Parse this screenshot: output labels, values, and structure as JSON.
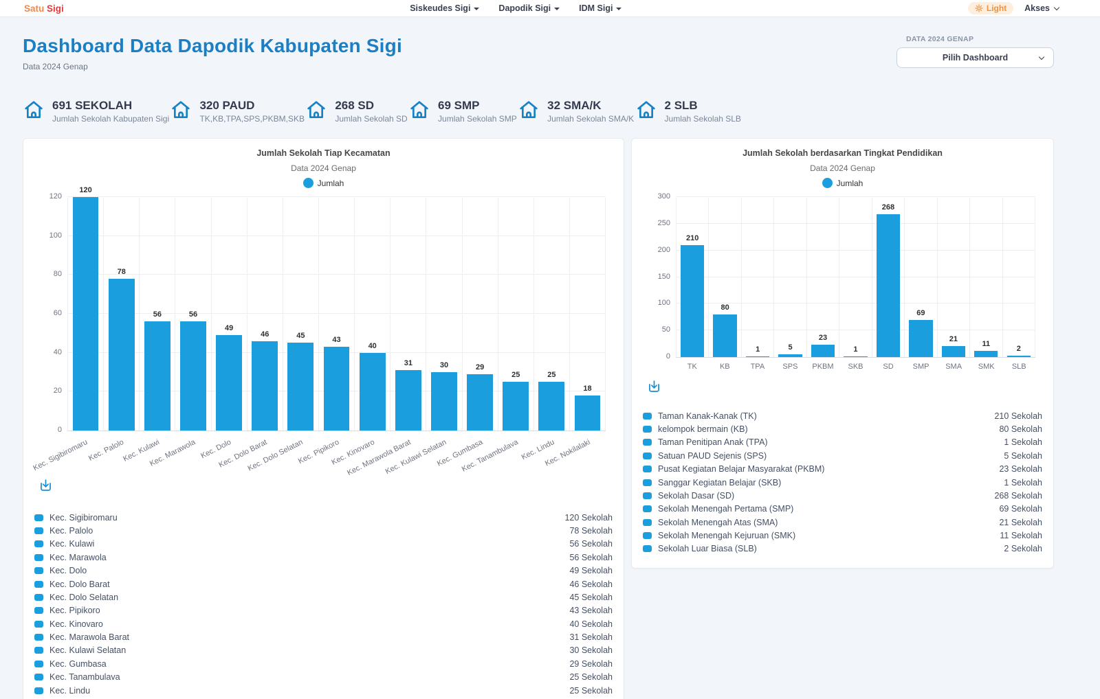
{
  "colors": {
    "accent": "#1a9edd",
    "heading": "#1a7fc4",
    "brand_satu": "#f08a4b",
    "brand_sigi": "#e23b3b",
    "light_badge_bg": "#fdeede",
    "light_badge_text": "#ef9143",
    "icon_blue": "#1781c6"
  },
  "icons": {
    "stat": "home-icon",
    "theme": "sun-icon",
    "chart_action": "download-icon",
    "dropdowns": "chevron-down-icon"
  },
  "navbar": {
    "brand_satu": "Satu",
    "brand_sigi": "Sigi",
    "menu": [
      {
        "label": "Siskeudes Sigi"
      },
      {
        "label": "Dapodik Sigi"
      },
      {
        "label": "IDM Sigi"
      }
    ],
    "theme_label": "Light",
    "akses_label": "Akses"
  },
  "header": {
    "title": "Dashboard Data Dapodik Kabupaten Sigi",
    "subtitle": "Data 2024 Genap",
    "select_label": "DATA 2024 GENAP",
    "select_value": "Pilih Dashboard"
  },
  "stats": [
    {
      "value": "691 SEKOLAH",
      "label": "Jumlah Sekolah Kabupaten Sigi"
    },
    {
      "value": "320 PAUD",
      "label": "TK,KB,TPA,SPS,PKBM,SKB"
    },
    {
      "value": "268 SD",
      "label": "Jumlah Sekolah SD"
    },
    {
      "value": "69 SMP",
      "label": "Jumlah Sekolah SMP"
    },
    {
      "value": "32 SMA/K",
      "label": "Jumlah Sekolah SMA/K"
    },
    {
      "value": "2 SLB",
      "label": "Jumlah Sekolah SLB"
    }
  ],
  "chart_data": [
    {
      "type": "bar",
      "title": "Jumlah Sekolah Tiap Kecamatan",
      "subtitle": "Data 2024 Genap",
      "legend": "Jumlah",
      "legend_position": "top",
      "grid": true,
      "categories": [
        "Kec. Sigibiromaru",
        "Kec. Palolo",
        "Kec. Kulawi",
        "Kec. Marawola",
        "Kec. Dolo",
        "Kec. Dolo Barat",
        "Kec. Dolo Selatan",
        "Kec. Pipikoro",
        "Kec. Kinovaro",
        "Kec. Marawola Barat",
        "Kec. Kulawi Selatan",
        "Kec. Gumbasa",
        "Kec. Tanambulava",
        "Kec. Lindu",
        "Kec. Nokilalaki"
      ],
      "values": [
        120,
        78,
        56,
        56,
        49,
        46,
        45,
        43,
        40,
        31,
        30,
        29,
        25,
        25,
        18
      ],
      "ylim": [
        0,
        120
      ],
      "ytick_step": 20,
      "unit_suffix": "Sekolah"
    },
    {
      "type": "bar",
      "title": "Jumlah Sekolah berdasarkan Tingkat Pendidikan",
      "subtitle": "Data 2024 Genap",
      "legend": "Jumlah",
      "legend_position": "top",
      "grid": true,
      "categories": [
        "TK",
        "KB",
        "TPA",
        "SPS",
        "PKBM",
        "SKB",
        "SD",
        "SMP",
        "SMA",
        "SMK",
        "SLB"
      ],
      "values": [
        210,
        80,
        1,
        5,
        23,
        1,
        268,
        69,
        21,
        11,
        2
      ],
      "list_labels": [
        "Taman Kanak-Kanak (TK)",
        "kelompok bermain (KB)",
        "Taman Penitipan Anak (TPA)",
        "Satuan PAUD Sejenis (SPS)",
        "Pusat Kegiatan Belajar Masyarakat (PKBM)",
        "Sanggar Kegiatan Belajar (SKB)",
        "Sekolah Dasar (SD)",
        "Sekolah Menengah Pertama (SMP)",
        "Sekolah Menengah Atas (SMA)",
        "Sekolah Menengah Kejuruan (SMK)",
        "Sekolah Luar Biasa (SLB)"
      ],
      "ylim": [
        0,
        300
      ],
      "ytick_step": 50,
      "unit_suffix": "Sekolah"
    }
  ]
}
